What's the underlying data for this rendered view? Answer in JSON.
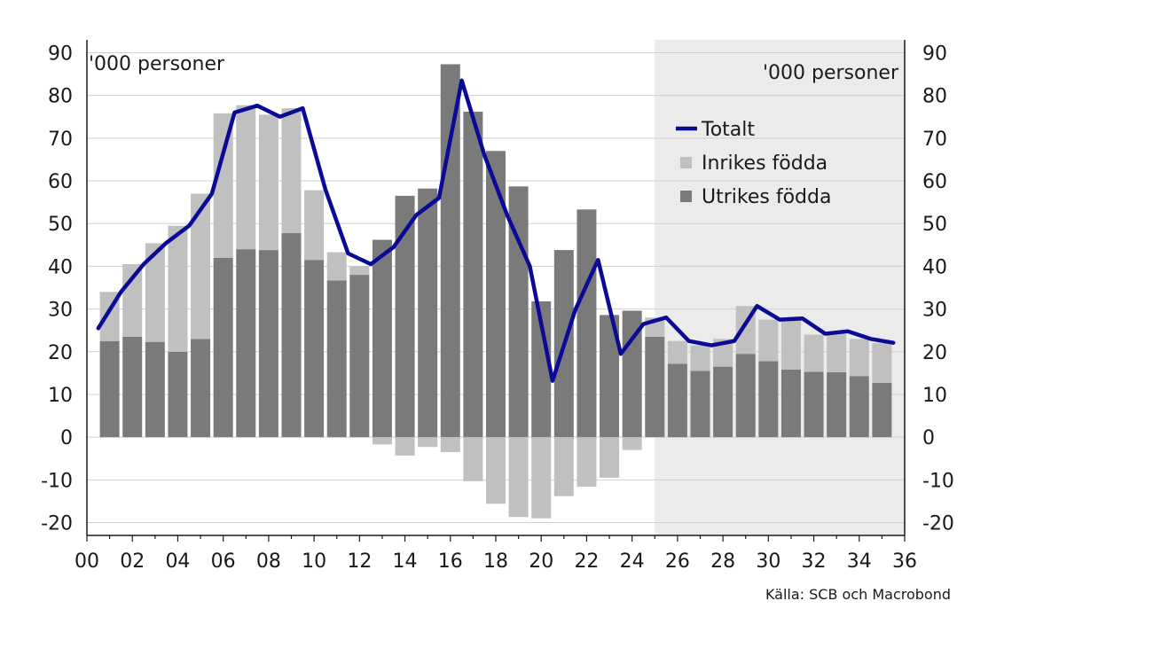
{
  "chart_data": {
    "type": "bar",
    "units_left": "'000 personer",
    "units_right": "'000 personer",
    "source": "Källa: SCB och Macrobond",
    "forecast_from": 25,
    "x": [
      1,
      2,
      3,
      4,
      5,
      6,
      7,
      8,
      9,
      10,
      11,
      12,
      13,
      14,
      15,
      16,
      17,
      18,
      19,
      20,
      21,
      22,
      23,
      24,
      25,
      26,
      27,
      28,
      29,
      30,
      31,
      32,
      33,
      34,
      35
    ],
    "xlim": [
      0,
      36
    ],
    "ylim": [
      -23,
      93
    ],
    "yticks": [
      -20,
      -10,
      0,
      10,
      20,
      30,
      40,
      50,
      60,
      70,
      80,
      90
    ],
    "xticks": [
      {
        "v": 0,
        "label": "00"
      },
      {
        "v": 2,
        "label": "02"
      },
      {
        "v": 4,
        "label": "04"
      },
      {
        "v": 6,
        "label": "06"
      },
      {
        "v": 8,
        "label": "08"
      },
      {
        "v": 10,
        "label": "10"
      },
      {
        "v": 12,
        "label": "12"
      },
      {
        "v": 14,
        "label": "14"
      },
      {
        "v": 16,
        "label": "16"
      },
      {
        "v": 18,
        "label": "18"
      },
      {
        "v": 20,
        "label": "20"
      },
      {
        "v": 22,
        "label": "22"
      },
      {
        "v": 24,
        "label": "24"
      },
      {
        "v": 26,
        "label": "26"
      },
      {
        "v": 28,
        "label": "28"
      },
      {
        "v": 30,
        "label": "30"
      },
      {
        "v": 32,
        "label": "32"
      },
      {
        "v": 34,
        "label": "34"
      },
      {
        "v": 36,
        "label": "36"
      }
    ],
    "legend_position": "top-right",
    "series": [
      {
        "name": "Utrikes födda",
        "color": "#7a7a7a",
        "values": [
          22.5,
          23.5,
          22.3,
          20,
          23,
          42,
          44,
          43.8,
          47.8,
          41.5,
          36.7,
          38,
          46.2,
          56.5,
          58.2,
          87.3,
          76.2,
          67,
          58.7,
          31.8,
          43.8,
          53.3,
          28.6,
          29.6,
          23.5,
          17.2,
          15.5,
          16.5,
          19.5,
          17.8,
          15.8,
          15.3,
          15.2,
          14.3,
          12.7
        ]
      },
      {
        "name": "Inrikes födda",
        "color": "#c0c0c0",
        "values": [
          11.5,
          17,
          23.1,
          29.5,
          34,
          33.8,
          33.7,
          31.7,
          29.2,
          16.3,
          6.6,
          2,
          -1.7,
          -4.3,
          -2.3,
          -3.5,
          -10.3,
          -15.6,
          -18.7,
          -19,
          -13.8,
          -11.6,
          -9.5,
          -3,
          4.5,
          5.3,
          6,
          6.5,
          11.2,
          9.7,
          11.7,
          8.7,
          9,
          8.7,
          9.3
        ]
      },
      {
        "name": "Totalt",
        "color": "#0a0a96",
        "type": "line",
        "x": [
          0.5,
          1.5,
          2.5,
          3.5,
          4.5,
          5.5,
          6.5,
          7.5,
          8.5,
          9.5,
          10.5,
          11.5,
          12.5,
          13.5,
          14.5,
          15.5,
          16.5,
          17.5,
          18.5,
          19.5,
          20.5,
          21.5,
          22.5,
          23.5,
          24.5,
          25.5,
          26.5,
          27.5,
          28.5,
          29.5,
          30.5,
          31.5,
          32.5,
          33.5,
          34.5,
          35.5
        ],
        "values": [
          25.5,
          34,
          40.5,
          45.5,
          49.5,
          57,
          76,
          77.6,
          75,
          77,
          58,
          43,
          40.5,
          44.5,
          52,
          56,
          83.5,
          66,
          52,
          40,
          13.2,
          29.8,
          41.5,
          19.5,
          26.5,
          28,
          22.5,
          21.5,
          22.5,
          30.7,
          27.5,
          27.8,
          24.2,
          24.8,
          23,
          22.1
        ]
      }
    ]
  }
}
